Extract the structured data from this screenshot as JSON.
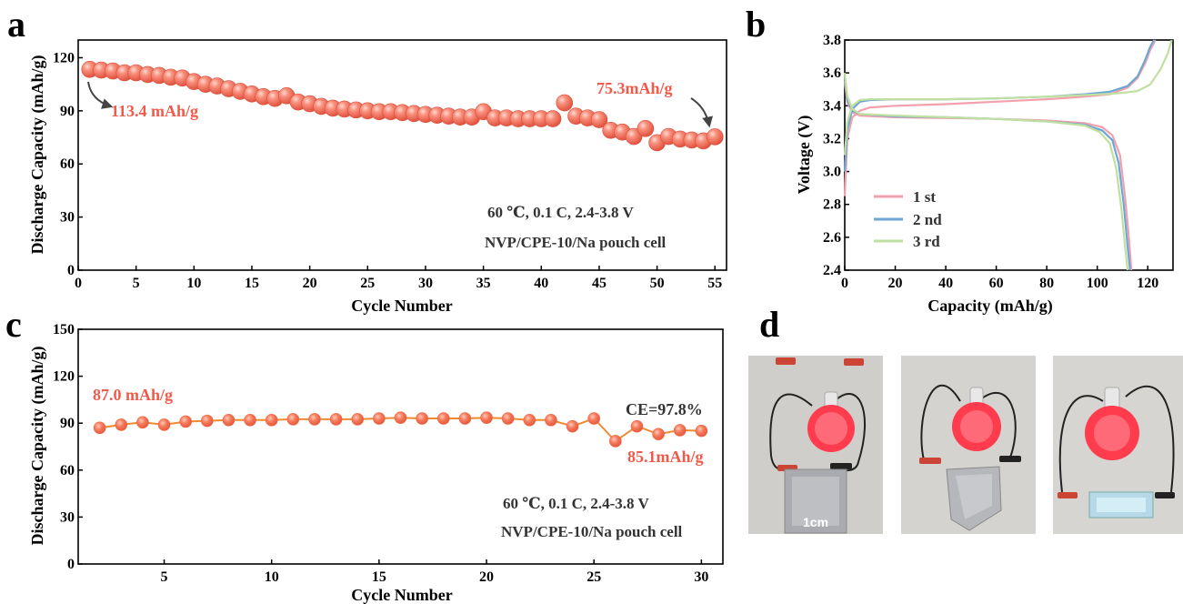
{
  "panel_labels": {
    "a": "a",
    "b": "b",
    "c": "c",
    "d": "d"
  },
  "colors": {
    "ball": "#f2715f",
    "ball_edge": "#d9523e",
    "annotation_red": "#f05a4a",
    "orange_line": "#f08a30",
    "orange_marker": "#f26a46",
    "curve1": "#f2a0ac",
    "curve2": "#6ea6d6",
    "curve3": "#bfe0a0",
    "axis": "#000000",
    "text": "#333333"
  },
  "chart_data": [
    {
      "id": "a",
      "type": "scatter",
      "xlabel": "Cycle Number",
      "ylabel": "Discharge Capacity (mAh/g)",
      "xlim": [
        0,
        56
      ],
      "ylim": [
        0,
        130
      ],
      "xticks": [
        0,
        5,
        10,
        15,
        20,
        25,
        30,
        35,
        40,
        45,
        50,
        55
      ],
      "yticks": [
        0,
        30,
        60,
        90,
        120
      ],
      "x": [
        1,
        2,
        3,
        4,
        5,
        6,
        7,
        8,
        9,
        10,
        11,
        12,
        13,
        14,
        15,
        16,
        17,
        18,
        19,
        20,
        21,
        22,
        23,
        24,
        25,
        26,
        27,
        28,
        29,
        30,
        31,
        32,
        33,
        34,
        35,
        36,
        37,
        38,
        39,
        40,
        41,
        42,
        43,
        44,
        45,
        46,
        47,
        48,
        49,
        50,
        51,
        52,
        53,
        54,
        55
      ],
      "y": [
        113.4,
        113.0,
        112.5,
        111.5,
        111.5,
        110.5,
        110.0,
        109.0,
        108.5,
        106.5,
        105.0,
        104.0,
        102.5,
        101.0,
        99.5,
        98.0,
        97.0,
        98.5,
        95.0,
        94.0,
        92.5,
        91.5,
        91.0,
        90.5,
        90.0,
        89.5,
        89.5,
        89.0,
        88.5,
        88.0,
        87.5,
        87.0,
        86.5,
        86.5,
        89.5,
        86.0,
        86.0,
        85.5,
        85.5,
        85.5,
        85.5,
        94.5,
        87.0,
        86.0,
        85.0,
        79.0,
        78.0,
        75.5,
        80.0,
        72.0,
        75.5,
        74.0,
        73.5,
        73.0,
        75.3
      ],
      "annotations": [
        {
          "text": "113.4 mAh/g",
          "cycle": 1
        },
        {
          "text": "75.3mAh/g",
          "cycle": 55
        }
      ],
      "conditions": [
        "60 ℃, 0.1 C, 2.4-3.8 V",
        "NVP/CPE-10/Na pouch cell"
      ]
    },
    {
      "id": "b",
      "type": "line",
      "xlabel": "Capacity (mAh/g)",
      "ylabel": "Voltage (V)",
      "xlim": [
        0,
        130
      ],
      "ylim": [
        2.4,
        3.8
      ],
      "xticks": [
        0,
        20,
        40,
        60,
        80,
        100,
        120
      ],
      "yticks": [
        2.4,
        2.6,
        2.8,
        3.0,
        3.2,
        3.4,
        3.6,
        3.8
      ],
      "legend_position": "bottom-left",
      "series": [
        {
          "name": "1 st",
          "color_key": "curve1",
          "charge": [
            [
              0,
              2.85
            ],
            [
              1,
              3.2
            ],
            [
              3,
              3.33
            ],
            [
              6,
              3.37
            ],
            [
              10,
              3.39
            ],
            [
              20,
              3.4
            ],
            [
              40,
              3.41
            ],
            [
              60,
              3.425
            ],
            [
              80,
              3.44
            ],
            [
              95,
              3.455
            ],
            [
              105,
              3.47
            ],
            [
              112,
              3.51
            ],
            [
              116,
              3.57
            ],
            [
              119,
              3.66
            ],
            [
              121,
              3.74
            ],
            [
              123,
              3.8
            ]
          ],
          "discharge": [
            [
              0,
              3.55
            ],
            [
              1,
              3.42
            ],
            [
              3,
              3.36
            ],
            [
              6,
              3.34
            ],
            [
              20,
              3.33
            ],
            [
              40,
              3.325
            ],
            [
              60,
              3.32
            ],
            [
              80,
              3.31
            ],
            [
              95,
              3.295
            ],
            [
              102,
              3.27
            ],
            [
              106,
              3.22
            ],
            [
              109,
              3.1
            ],
            [
              111,
              2.85
            ],
            [
              112.5,
              2.6
            ],
            [
              113.5,
              2.4
            ]
          ]
        },
        {
          "name": "2 nd",
          "color_key": "curve2",
          "charge": [
            [
              0,
              3.0
            ],
            [
              1,
              3.25
            ],
            [
              3,
              3.38
            ],
            [
              6,
              3.425
            ],
            [
              10,
              3.435
            ],
            [
              20,
              3.44
            ],
            [
              40,
              3.44
            ],
            [
              60,
              3.445
            ],
            [
              80,
              3.455
            ],
            [
              95,
              3.47
            ],
            [
              105,
              3.485
            ],
            [
              112,
              3.52
            ],
            [
              116,
              3.58
            ],
            [
              119,
              3.68
            ],
            [
              121,
              3.76
            ],
            [
              122.5,
              3.8
            ]
          ],
          "discharge": [
            [
              0,
              3.58
            ],
            [
              1,
              3.44
            ],
            [
              3,
              3.37
            ],
            [
              6,
              3.35
            ],
            [
              20,
              3.335
            ],
            [
              40,
              3.33
            ],
            [
              60,
              3.32
            ],
            [
              80,
              3.305
            ],
            [
              95,
              3.285
            ],
            [
              102,
              3.25
            ],
            [
              106,
              3.19
            ],
            [
              108.5,
              3.05
            ],
            [
              110.5,
              2.8
            ],
            [
              112,
              2.55
            ],
            [
              113,
              2.4
            ]
          ]
        },
        {
          "name": "3 rd",
          "color_key": "curve3",
          "charge": [
            [
              0,
              3.1
            ],
            [
              1,
              3.3
            ],
            [
              3,
              3.4
            ],
            [
              6,
              3.435
            ],
            [
              10,
              3.44
            ],
            [
              20,
              3.44
            ],
            [
              40,
              3.44
            ],
            [
              60,
              3.445
            ],
            [
              80,
              3.455
            ],
            [
              95,
              3.465
            ],
            [
              108,
              3.475
            ],
            [
              116,
              3.49
            ],
            [
              121,
              3.53
            ],
            [
              125,
              3.62
            ],
            [
              128,
              3.72
            ],
            [
              129.5,
              3.8
            ]
          ],
          "discharge": [
            [
              0,
              3.6
            ],
            [
              1,
              3.46
            ],
            [
              3,
              3.38
            ],
            [
              6,
              3.35
            ],
            [
              20,
              3.34
            ],
            [
              40,
              3.33
            ],
            [
              60,
              3.32
            ],
            [
              80,
              3.305
            ],
            [
              95,
              3.28
            ],
            [
              101,
              3.24
            ],
            [
              105,
              3.17
            ],
            [
              107.5,
              3.02
            ],
            [
              109.5,
              2.78
            ],
            [
              111,
              2.55
            ],
            [
              112,
              2.4
            ]
          ]
        }
      ]
    },
    {
      "id": "c",
      "type": "line",
      "xlabel": "Cycle Number",
      "ylabel": "Discharge Capacity (mAh/g)",
      "xlim": [
        1,
        31
      ],
      "ylim": [
        0,
        150
      ],
      "xticks": [
        5,
        10,
        15,
        20,
        25,
        30
      ],
      "yticks": [
        0,
        30,
        60,
        90,
        120,
        150
      ],
      "x": [
        2,
        3,
        4,
        5,
        6,
        7,
        8,
        9,
        10,
        11,
        12,
        13,
        14,
        15,
        16,
        17,
        18,
        19,
        20,
        21,
        22,
        23,
        24,
        25,
        26,
        27,
        28,
        29,
        30
      ],
      "y": [
        87.0,
        89.0,
        90.5,
        89.0,
        91.0,
        91.5,
        92.0,
        92.0,
        92.0,
        92.5,
        92.5,
        92.5,
        92.5,
        93.0,
        93.5,
        93.0,
        93.0,
        93.0,
        93.5,
        93.0,
        92.0,
        92.0,
        88.0,
        93.0,
        78.5,
        88.0,
        83.0,
        85.5,
        85.1
      ],
      "annotations": [
        {
          "text": "87.0 mAh/g",
          "cycle": 2
        },
        {
          "text": "CE=97.8%",
          "cycle": 30
        },
        {
          "text": "85.1mAh/g",
          "cycle": 30
        }
      ],
      "conditions": [
        "60 ℃, 0.1 C, 2.4-3.8 V",
        "NVP/CPE-10/Na pouch cell"
      ]
    }
  ],
  "photos": {
    "scale_label": "1cm"
  }
}
